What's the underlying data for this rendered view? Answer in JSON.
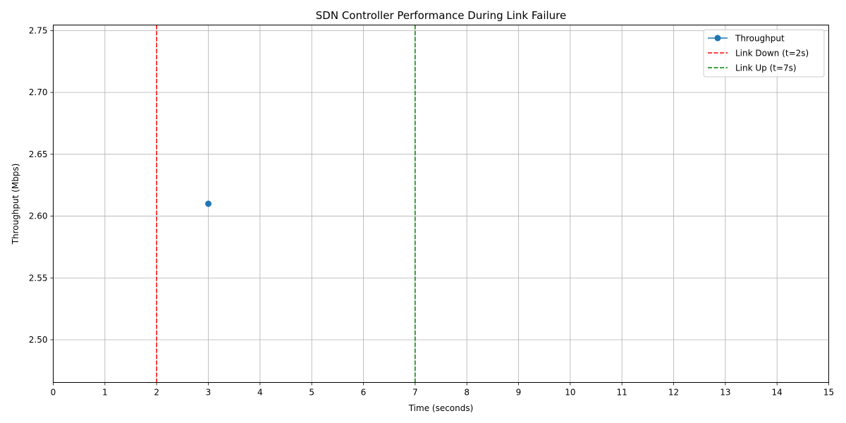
{
  "chart_data": {
    "type": "line",
    "title": "SDN Controller Performance During Link Failure",
    "xlabel": "Time (seconds)",
    "ylabel": "Throughput (Mbps)",
    "xlim": [
      0,
      15
    ],
    "ylim": [
      2.4655,
      2.7545
    ],
    "x_ticks": [
      0,
      1,
      2,
      3,
      4,
      5,
      6,
      7,
      8,
      9,
      10,
      11,
      12,
      13,
      14,
      15
    ],
    "y_ticks": [
      2.5,
      2.55,
      2.6,
      2.65,
      2.7,
      2.75
    ],
    "y_tick_labels": [
      "2.50",
      "2.55",
      "2.60",
      "2.65",
      "2.70",
      "2.75"
    ],
    "grid": true,
    "legend_position": "top-right",
    "series": [
      {
        "name": "Throughput",
        "color": "#1f77b4",
        "marker": "circle",
        "x": [
          3
        ],
        "y": [
          2.61
        ]
      }
    ],
    "vlines": [
      {
        "name": "Link Down (t=2s)",
        "x": 2,
        "color": "#ff0000",
        "style": "dashed"
      },
      {
        "name": "Link Up (t=7s)",
        "x": 7,
        "color": "#008000",
        "style": "dashed"
      }
    ]
  }
}
